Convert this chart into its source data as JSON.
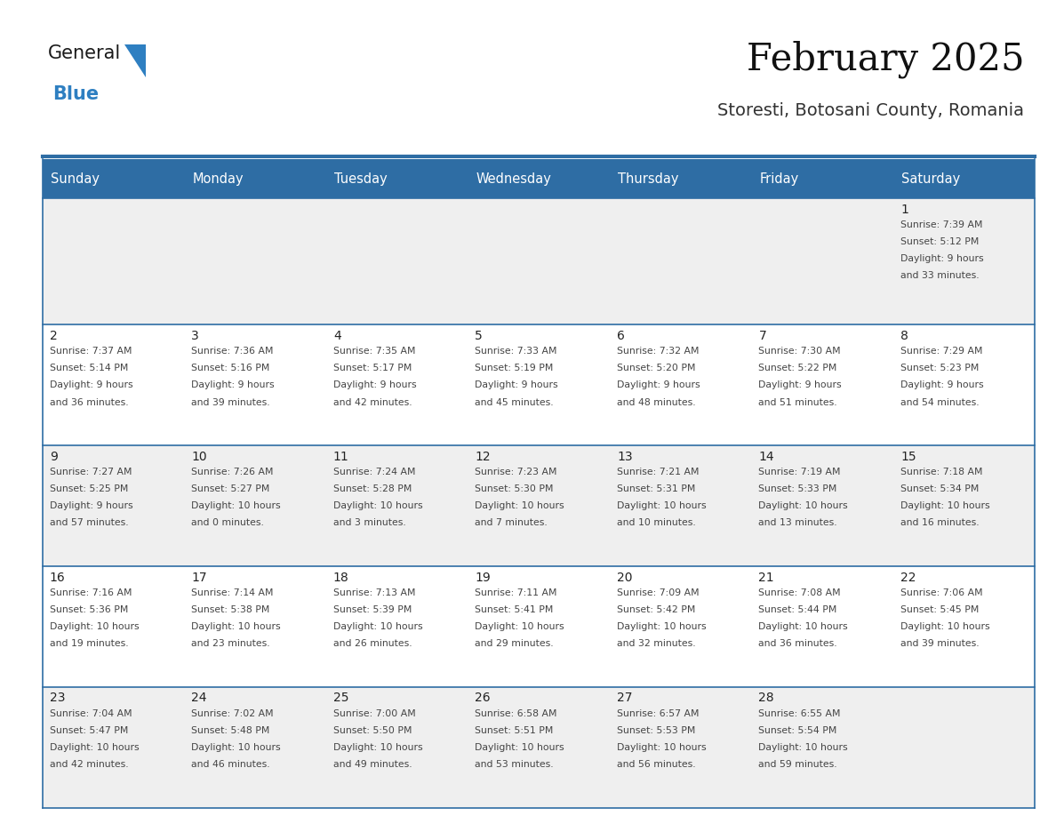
{
  "title": "February 2025",
  "subtitle": "Storesti, Botosani County, Romania",
  "days_of_week": [
    "Sunday",
    "Monday",
    "Tuesday",
    "Wednesday",
    "Thursday",
    "Friday",
    "Saturday"
  ],
  "header_bg": "#2e6da4",
  "header_text": "#ffffff",
  "cell_bg_odd": "#efefef",
  "cell_bg_even": "#ffffff",
  "border_color": "#336699",
  "day_number_color": "#222222",
  "text_color": "#444444",
  "calendar_data": [
    [
      null,
      null,
      null,
      null,
      null,
      null,
      {
        "day": 1,
        "sunrise": "7:39 AM",
        "sunset": "5:12 PM",
        "daylight": "9 hours",
        "daylight2": "and 33 minutes."
      }
    ],
    [
      {
        "day": 2,
        "sunrise": "7:37 AM",
        "sunset": "5:14 PM",
        "daylight": "9 hours",
        "daylight2": "and 36 minutes."
      },
      {
        "day": 3,
        "sunrise": "7:36 AM",
        "sunset": "5:16 PM",
        "daylight": "9 hours",
        "daylight2": "and 39 minutes."
      },
      {
        "day": 4,
        "sunrise": "7:35 AM",
        "sunset": "5:17 PM",
        "daylight": "9 hours",
        "daylight2": "and 42 minutes."
      },
      {
        "day": 5,
        "sunrise": "7:33 AM",
        "sunset": "5:19 PM",
        "daylight": "9 hours",
        "daylight2": "and 45 minutes."
      },
      {
        "day": 6,
        "sunrise": "7:32 AM",
        "sunset": "5:20 PM",
        "daylight": "9 hours",
        "daylight2": "and 48 minutes."
      },
      {
        "day": 7,
        "sunrise": "7:30 AM",
        "sunset": "5:22 PM",
        "daylight": "9 hours",
        "daylight2": "and 51 minutes."
      },
      {
        "day": 8,
        "sunrise": "7:29 AM",
        "sunset": "5:23 PM",
        "daylight": "9 hours",
        "daylight2": "and 54 minutes."
      }
    ],
    [
      {
        "day": 9,
        "sunrise": "7:27 AM",
        "sunset": "5:25 PM",
        "daylight": "9 hours",
        "daylight2": "and 57 minutes."
      },
      {
        "day": 10,
        "sunrise": "7:26 AM",
        "sunset": "5:27 PM",
        "daylight": "10 hours",
        "daylight2": "and 0 minutes."
      },
      {
        "day": 11,
        "sunrise": "7:24 AM",
        "sunset": "5:28 PM",
        "daylight": "10 hours",
        "daylight2": "and 3 minutes."
      },
      {
        "day": 12,
        "sunrise": "7:23 AM",
        "sunset": "5:30 PM",
        "daylight": "10 hours",
        "daylight2": "and 7 minutes."
      },
      {
        "day": 13,
        "sunrise": "7:21 AM",
        "sunset": "5:31 PM",
        "daylight": "10 hours",
        "daylight2": "and 10 minutes."
      },
      {
        "day": 14,
        "sunrise": "7:19 AM",
        "sunset": "5:33 PM",
        "daylight": "10 hours",
        "daylight2": "and 13 minutes."
      },
      {
        "day": 15,
        "sunrise": "7:18 AM",
        "sunset": "5:34 PM",
        "daylight": "10 hours",
        "daylight2": "and 16 minutes."
      }
    ],
    [
      {
        "day": 16,
        "sunrise": "7:16 AM",
        "sunset": "5:36 PM",
        "daylight": "10 hours",
        "daylight2": "and 19 minutes."
      },
      {
        "day": 17,
        "sunrise": "7:14 AM",
        "sunset": "5:38 PM",
        "daylight": "10 hours",
        "daylight2": "and 23 minutes."
      },
      {
        "day": 18,
        "sunrise": "7:13 AM",
        "sunset": "5:39 PM",
        "daylight": "10 hours",
        "daylight2": "and 26 minutes."
      },
      {
        "day": 19,
        "sunrise": "7:11 AM",
        "sunset": "5:41 PM",
        "daylight": "10 hours",
        "daylight2": "and 29 minutes."
      },
      {
        "day": 20,
        "sunrise": "7:09 AM",
        "sunset": "5:42 PM",
        "daylight": "10 hours",
        "daylight2": "and 32 minutes."
      },
      {
        "day": 21,
        "sunrise": "7:08 AM",
        "sunset": "5:44 PM",
        "daylight": "10 hours",
        "daylight2": "and 36 minutes."
      },
      {
        "day": 22,
        "sunrise": "7:06 AM",
        "sunset": "5:45 PM",
        "daylight": "10 hours",
        "daylight2": "and 39 minutes."
      }
    ],
    [
      {
        "day": 23,
        "sunrise": "7:04 AM",
        "sunset": "5:47 PM",
        "daylight": "10 hours",
        "daylight2": "and 42 minutes."
      },
      {
        "day": 24,
        "sunrise": "7:02 AM",
        "sunset": "5:48 PM",
        "daylight": "10 hours",
        "daylight2": "and 46 minutes."
      },
      {
        "day": 25,
        "sunrise": "7:00 AM",
        "sunset": "5:50 PM",
        "daylight": "10 hours",
        "daylight2": "and 49 minutes."
      },
      {
        "day": 26,
        "sunrise": "6:58 AM",
        "sunset": "5:51 PM",
        "daylight": "10 hours",
        "daylight2": "and 53 minutes."
      },
      {
        "day": 27,
        "sunrise": "6:57 AM",
        "sunset": "5:53 PM",
        "daylight": "10 hours",
        "daylight2": "and 56 minutes."
      },
      {
        "day": 28,
        "sunrise": "6:55 AM",
        "sunset": "5:54 PM",
        "daylight": "10 hours",
        "daylight2": "and 59 minutes."
      },
      null
    ]
  ],
  "fig_width": 11.88,
  "fig_height": 9.18,
  "dpi": 100
}
